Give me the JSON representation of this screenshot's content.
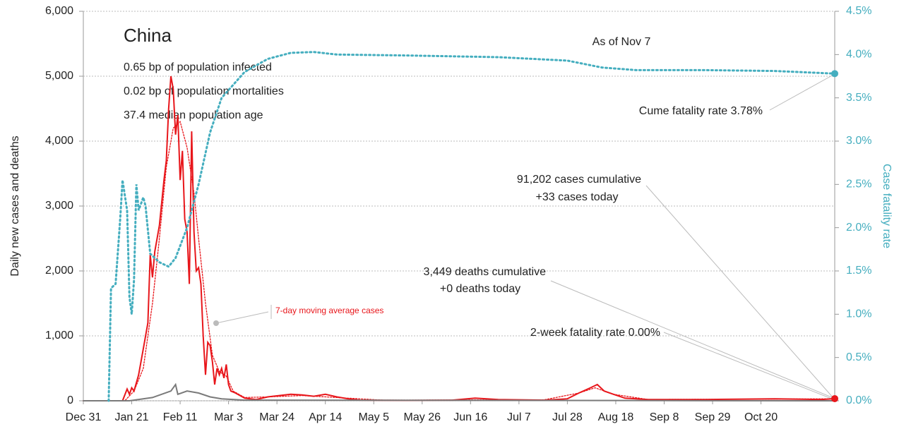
{
  "chart_data": {
    "type": "line",
    "title": "China",
    "subtitle": [
      "0.65 bp of population infected",
      "0.02 bp of population mortalities",
      "37.4 median population age"
    ],
    "y_label": "Daily new cases and deaths",
    "y2_label": "Case fatality rate",
    "annotations": [
      "As of Nov 7",
      "Cume fatality rate 3.78%",
      "91,202 cases cumulative",
      "+33 cases today",
      "3,449 deaths cumulative",
      "+0 deaths today",
      "2-week fatality rate 0.00%",
      "7-day moving average cases"
    ],
    "xlim": [
      0,
      326
    ],
    "xticks": [
      {
        "value": 0,
        "label": "Dec 31"
      },
      {
        "value": 21,
        "label": "Jan 21"
      },
      {
        "value": 42,
        "label": "Feb 11"
      },
      {
        "value": 63,
        "label": "Mar 3"
      },
      {
        "value": 84,
        "label": "Mar 24"
      },
      {
        "value": 105,
        "label": "Apr 14"
      },
      {
        "value": 126,
        "label": "May 5"
      },
      {
        "value": 147,
        "label": "May 26"
      },
      {
        "value": 168,
        "label": "Jun 16"
      },
      {
        "value": 189,
        "label": "Jul 7"
      },
      {
        "value": 210,
        "label": "Jul 28"
      },
      {
        "value": 231,
        "label": "Aug 18"
      },
      {
        "value": 252,
        "label": "Sep 8"
      },
      {
        "value": 273,
        "label": "Sep 29"
      },
      {
        "value": 294,
        "label": "Oct 20"
      }
    ],
    "ylim": [
      0,
      6000
    ],
    "yticks": [
      0,
      {
        "value": 1000,
        "label": "1,000"
      },
      {
        "value": 2000,
        "label": "2,000"
      },
      {
        "value": 3000,
        "label": "3,000"
      },
      {
        "value": 4000,
        "label": "4,000"
      },
      {
        "value": 5000,
        "label": "5,000"
      },
      {
        "value": 6000,
        "label": "6,000"
      }
    ],
    "y2lim": [
      0,
      4.5
    ],
    "y2ticks": [
      {
        "value": 0,
        "label": "0.0%"
      },
      {
        "value": 0.5,
        "label": "0.5%"
      },
      {
        "value": 1,
        "label": "1.0%"
      },
      {
        "value": 1.5,
        "label": "1.5%"
      },
      {
        "value": 2,
        "label": "2.0%"
      },
      {
        "value": 2.5,
        "label": "2.5%"
      },
      {
        "value": 3,
        "label": "3.0%"
      },
      {
        "value": 3.5,
        "label": "3.5%"
      },
      {
        "value": 4,
        "label": "4.0%"
      },
      {
        "value": 4.5,
        "label": "4.5%"
      }
    ],
    "grid": true,
    "series": [
      {
        "name": "Daily new cases",
        "color": "#e8161b",
        "style": "solid",
        "x": [
          0,
          17,
          19,
          20,
          21,
          22,
          24,
          26,
          28,
          29,
          30,
          31,
          33,
          35,
          36,
          37,
          38,
          39,
          40,
          41,
          42,
          43,
          44,
          45,
          46,
          47,
          48,
          49,
          50,
          51,
          52,
          53,
          54,
          55,
          56,
          57,
          58,
          59,
          60,
          61,
          62,
          63,
          64,
          66,
          70,
          75,
          80,
          85,
          90,
          95,
          100,
          105,
          110,
          115,
          120,
          140,
          160,
          170,
          180,
          200,
          210,
          215,
          220,
          223,
          226,
          230,
          235,
          245,
          270,
          300,
          320,
          326
        ],
        "values": [
          0,
          0,
          180,
          100,
          200,
          150,
          400,
          800,
          1200,
          2250,
          1900,
          2300,
          2700,
          3400,
          3700,
          4500,
          5000,
          4800,
          4100,
          4400,
          3400,
          3850,
          2800,
          2600,
          1800,
          4150,
          2600,
          2000,
          2050,
          1800,
          1000,
          400,
          900,
          850,
          600,
          250,
          500,
          400,
          500,
          350,
          560,
          250,
          150,
          120,
          40,
          20,
          60,
          80,
          100,
          90,
          70,
          100,
          60,
          30,
          10,
          5,
          10,
          40,
          20,
          10,
          30,
          120,
          200,
          250,
          150,
          100,
          40,
          20,
          20,
          30,
          20,
          33
        ]
      },
      {
        "name": "7-day moving average cases",
        "color": "#e8161b",
        "style": "dotted",
        "x": [
          0,
          18,
          22,
          26,
          30,
          33,
          36,
          39,
          42,
          45,
          48,
          50,
          53,
          56,
          59,
          62,
          65,
          70,
          80,
          95,
          110,
          130,
          200,
          215,
          222,
          230,
          245,
          326
        ],
        "values": [
          0,
          0,
          150,
          500,
          1500,
          2500,
          3600,
          4200,
          4300,
          3900,
          3200,
          2500,
          1500,
          700,
          450,
          380,
          150,
          50,
          60,
          80,
          50,
          10,
          15,
          120,
          200,
          100,
          20,
          30
        ]
      },
      {
        "name": "Daily new deaths",
        "color": "#7a7a7a",
        "style": "solid",
        "x": [
          0,
          20,
          30,
          38,
          40,
          41,
          45,
          50,
          55,
          60,
          70,
          326
        ],
        "values": [
          0,
          0,
          50,
          150,
          250,
          100,
          150,
          120,
          60,
          30,
          10,
          0
        ]
      },
      {
        "name": "Case fatality rate",
        "color": "#45aebf",
        "style": "dotted",
        "axis": "y2",
        "x": [
          11,
          12,
          14,
          16,
          17,
          19,
          20,
          21,
          22,
          23,
          24,
          26,
          27,
          29,
          33,
          37,
          40,
          45,
          50,
          55,
          60,
          70,
          80,
          90,
          100,
          110,
          140,
          180,
          210,
          225,
          240,
          270,
          300,
          326
        ],
        "values": [
          0,
          1.3,
          1.35,
          2.1,
          2.55,
          2.2,
          1.2,
          1.0,
          1.4,
          2.5,
          2.2,
          2.35,
          2.25,
          1.7,
          1.6,
          1.55,
          1.65,
          2.0,
          2.5,
          3.1,
          3.5,
          3.8,
          3.95,
          4.02,
          4.03,
          4.0,
          3.99,
          3.97,
          3.93,
          3.85,
          3.82,
          3.82,
          3.81,
          3.78
        ]
      }
    ]
  }
}
